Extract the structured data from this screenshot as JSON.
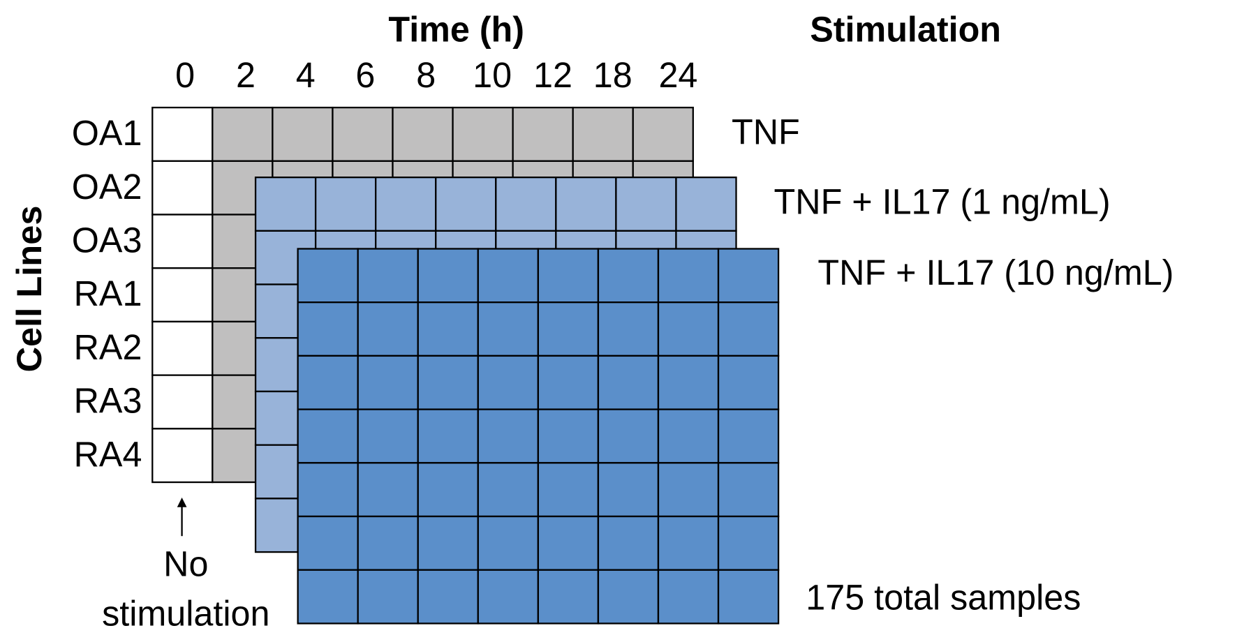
{
  "header": {
    "time_title": "Time (h)",
    "stimulation_title": "Stimulation",
    "y_title": "Cell Lines"
  },
  "times": [
    0,
    2,
    4,
    6,
    8,
    10,
    12,
    18,
    24
  ],
  "cell_lines": [
    "OA1",
    "OA2",
    "OA3",
    "RA1",
    "RA2",
    "RA3",
    "RA4"
  ],
  "stimulations": [
    "TNF",
    "TNF + IL17 (1 ng/mL)",
    "TNF + IL17 (10 ng/mL)"
  ],
  "annotation": {
    "lines": [
      "No",
      "stimulation"
    ]
  },
  "total": "175 total samples"
}
